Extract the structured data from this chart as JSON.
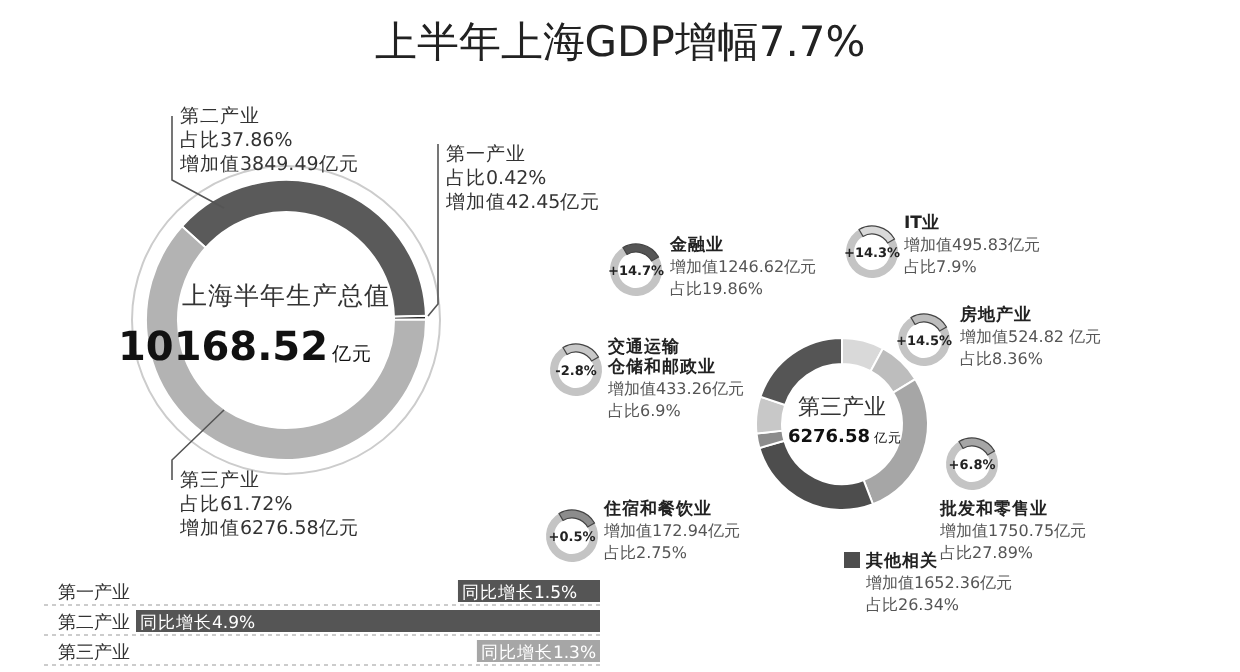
{
  "chart_data": [
    {
      "type": "donut",
      "title": "上半年上海GDP增幅7.7%",
      "categories": [
        "第二产业",
        "第一产业",
        "第三产业"
      ],
      "values": [
        37.86,
        0.42,
        61.72
      ],
      "colors": [
        "#5a5a5a",
        "#2a2a2a",
        "#b3b3b3"
      ],
      "value_labels": [
        "占比37.86%",
        "占比0.42%",
        "占比61.72%"
      ],
      "annotations": [
        "上海半年生产总值",
        "10168.52",
        "亿元",
        "增加值3849.49亿元",
        "增加值42.45亿元",
        "增加值6276.58亿元"
      ]
    },
    {
      "type": "donut",
      "legend": "top left",
      "categories": [
        "IT业",
        "房地产业",
        "批发和零售业",
        "其他相关",
        "住宿和餐饮业",
        "交通运输仓储和邮政业",
        "金融业"
      ],
      "values": [
        7.9,
        8.36,
        27.89,
        26.34,
        2.75,
        6.9,
        19.86
      ],
      "colors": [
        "#d9d9d9",
        "#bdbdbd",
        "#a6a6a6",
        "#4d4d4d",
        "#8c8c8c",
        "#c8c8c8",
        "#555555"
      ],
      "annotations": [
        "第三产业",
        "6276.58",
        "亿元",
        "增加值495.83亿元",
        "增加值524.82 亿元",
        "增加值1750.75亿元",
        "增加值1652.36亿元",
        "增加值172.94亿元",
        "增加值433.26亿元",
        "增加值1246.62亿元",
        "+14.3%",
        "+14.5%",
        "+6.8%",
        "+0.5%",
        "-2.8%",
        "+14.7%",
        "占比7.9%",
        "占比8.36%",
        "占比27.89%",
        "占比26.34%",
        "占比2.75%",
        "占比6.9%",
        "占比19.86%"
      ]
    },
    {
      "type": "bar",
      "orientation": "horizontal",
      "categories": [
        "第一产业",
        "第二产业",
        "第三产业"
      ],
      "values": [
        1.5,
        4.9,
        1.3
      ],
      "colors": [
        "#555555",
        "#555555",
        "#a6a6a6"
      ],
      "value_labels": [
        "同比增长1.5%",
        "同比增长4.9%",
        "同比增长1.3%"
      ]
    }
  ]
}
